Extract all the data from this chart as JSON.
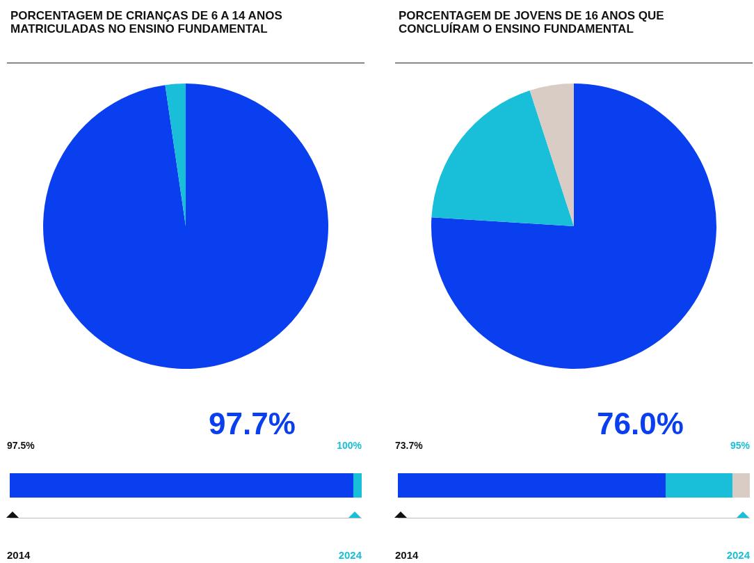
{
  "chart_data": [
    {
      "type": "pie",
      "title": "PORCENTAGEM DE CRIANÇAS DE 6 A 14 ANOS MATRICULADAS NO ENSINO FUNDAMENTAL",
      "categories": [
        null,
        null
      ],
      "values": [
        97.7,
        2.3
      ],
      "colors": [
        "#0a3ff0",
        "#19bfd8"
      ],
      "annotations": [
        "97.7%",
        "97.5%",
        "100%",
        "2014",
        "2024"
      ]
    },
    {
      "type": "pie",
      "title": "PORCENTAGEM DE JOVENS DE 16 ANOS QUE CONCLUÍRAM O ENSINO FUNDAMENTAL",
      "categories": [
        null,
        null,
        null
      ],
      "values": [
        76.0,
        19.0,
        5.0
      ],
      "colors": [
        "#0a3ff0",
        "#19bfd8",
        "#d9ccc4"
      ],
      "annotations": [
        "76.0%",
        "73.7%",
        "95%",
        "2014",
        "2024"
      ]
    }
  ]
}
